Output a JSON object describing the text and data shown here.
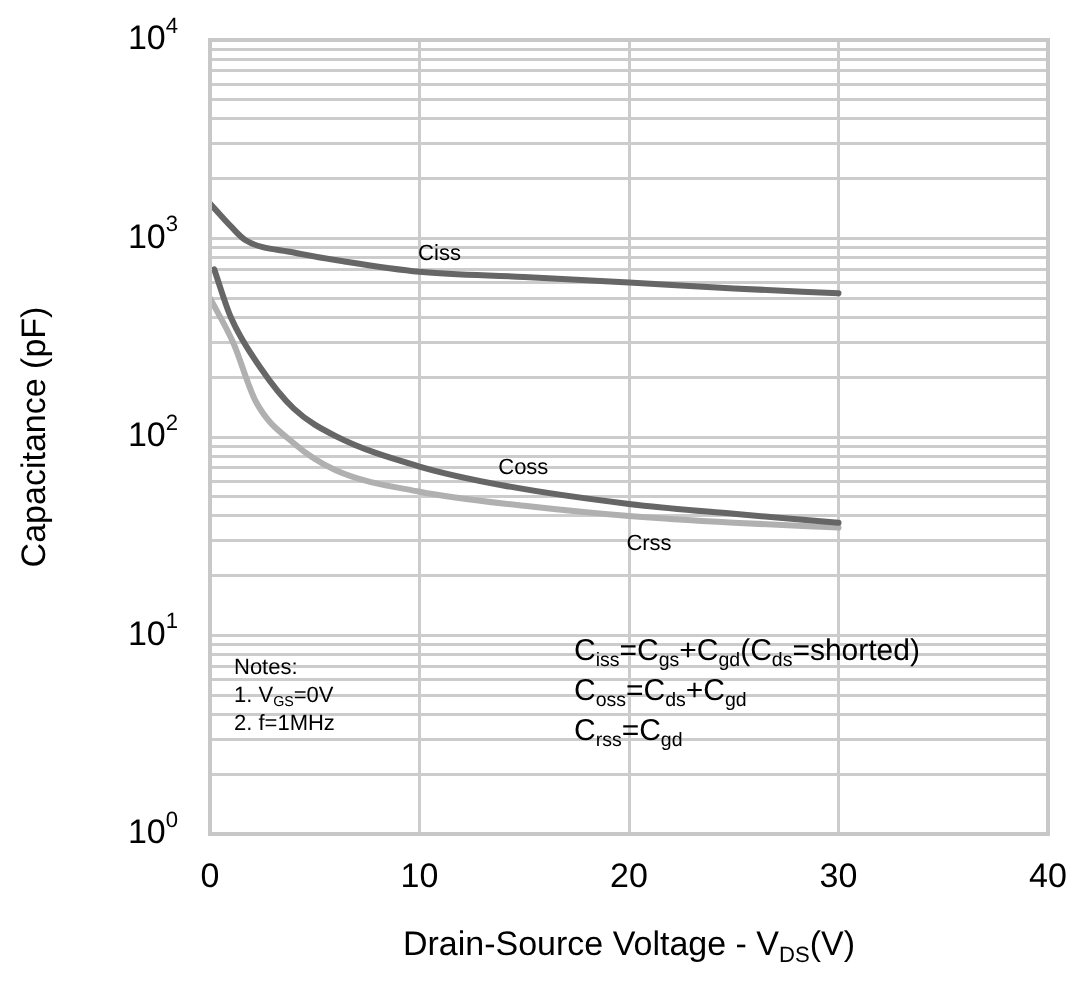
{
  "chart_data": {
    "type": "line",
    "xlabel": "Drain-Source Voltage - V$_{DS}$(V)",
    "ylabel": "Capacitance (pF)",
    "log": "y",
    "xlim": [
      0,
      40
    ],
    "xticks": [
      0,
      10,
      20,
      30,
      40
    ],
    "ylim": [
      1,
      10000
    ],
    "yticks": [
      {
        "value": 1,
        "label": "10$^{0}$"
      },
      {
        "value": 2,
        "label": null
      },
      {
        "value": 3,
        "label": null
      },
      {
        "value": 4,
        "label": null
      },
      {
        "value": 5,
        "label": null
      },
      {
        "value": 6,
        "label": null
      },
      {
        "value": 7,
        "label": null
      },
      {
        "value": 8,
        "label": null
      },
      {
        "value": 9,
        "label": null
      },
      {
        "value": 10,
        "label": "10$^{1}$"
      },
      {
        "value": 20,
        "label": null
      },
      {
        "value": 30,
        "label": null
      },
      {
        "value": 40,
        "label": null
      },
      {
        "value": 50,
        "label": null
      },
      {
        "value": 60,
        "label": null
      },
      {
        "value": 70,
        "label": null
      },
      {
        "value": 80,
        "label": null
      },
      {
        "value": 90,
        "label": null
      },
      {
        "value": 100,
        "label": "10$^{2}$"
      },
      {
        "value": 200,
        "label": null
      },
      {
        "value": 300,
        "label": null
      },
      {
        "value": 400,
        "label": null
      },
      {
        "value": 500,
        "label": null
      },
      {
        "value": 600,
        "label": null
      },
      {
        "value": 700,
        "label": null
      },
      {
        "value": 800,
        "label": null
      },
      {
        "value": 900,
        "label": null
      },
      {
        "value": 1000,
        "label": "10$^{3}$"
      },
      {
        "value": 2000,
        "label": null
      },
      {
        "value": 3000,
        "label": null
      },
      {
        "value": 4000,
        "label": null
      },
      {
        "value": 5000,
        "label": null
      },
      {
        "value": 6000,
        "label": null
      },
      {
        "value": 7000,
        "label": null
      },
      {
        "value": 8000,
        "label": null
      },
      {
        "value": 9000,
        "label": null
      },
      {
        "value": 10000,
        "label": "10$^{4}$"
      }
    ],
    "grid": true,
    "legend": false,
    "marker": "none",
    "line_style": "solid",
    "series": [
      {
        "name": "Ciss",
        "color": "#666666",
        "x": [
          0,
          1,
          1.7,
          4,
          6.3,
          10,
          15,
          20,
          25,
          30
        ],
        "values": [
          1500,
          1150,
          980,
          850,
          770,
          680,
          640,
          600,
          560,
          530
        ]
      },
      {
        "name": "Coss",
        "color": "#666666",
        "x": [
          0.2,
          1,
          2.4,
          4,
          6,
          10,
          14,
          20,
          25,
          30
        ],
        "values": [
          700,
          400,
          224,
          139,
          101,
          71,
          57,
          46,
          41,
          37
        ]
      },
      {
        "name": "Crss",
        "color": "#b0b0b0",
        "x": [
          0,
          1.1,
          2.2,
          4,
          6,
          10,
          15,
          20,
          25,
          30
        ],
        "values": [
          500,
          300,
          150,
          93,
          68,
          53,
          45,
          40,
          37,
          35
        ]
      }
    ],
    "annotations": [
      "Notes:",
      "1. V$_{GS}$=0V",
      "2. f=1MHz",
      "C$_{iss}$=C$_{gs}$+C$_{gd}$(C$_{ds}$=shorted)",
      "C$_{oss}$=C$_{ds}$+C$_{gd}$",
      "C$_{rss}$=C$_{gd}$"
    ]
  }
}
